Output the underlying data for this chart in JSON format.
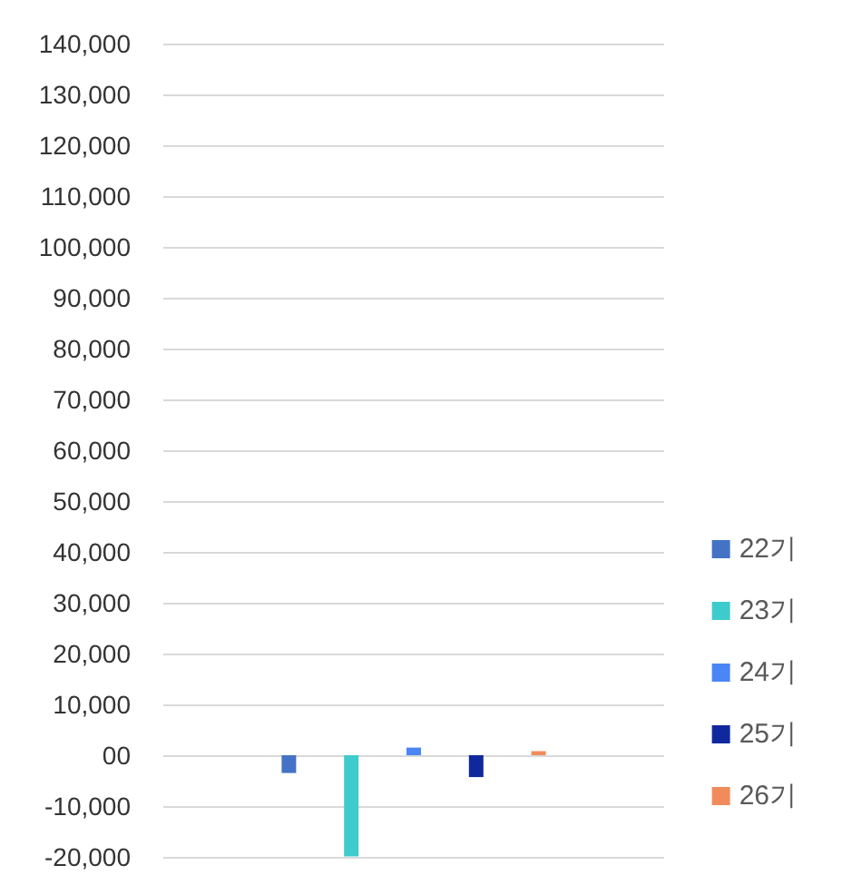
{
  "chart_data": {
    "type": "bar",
    "categories": [
      null
    ],
    "series": [
      {
        "name": "22기",
        "color": "#4472c4",
        "values": [
          -3500
        ]
      },
      {
        "name": "23기",
        "color": "#3ecbcc",
        "values": [
          -19900
        ]
      },
      {
        "name": "24기",
        "color": "#4a86f5",
        "values": [
          1500
        ]
      },
      {
        "name": "25기",
        "color": "#10289e",
        "values": [
          -4300
        ]
      },
      {
        "name": "26기",
        "color": "#f28b5c",
        "values": [
          800
        ]
      }
    ],
    "ylim": [
      -20000,
      140000
    ],
    "yticks": [
      {
        "value": -20000,
        "label": "-20,000"
      },
      {
        "value": -10000,
        "label": "-10,000"
      },
      {
        "value": 0,
        "label": "00"
      },
      {
        "value": 10000,
        "label": "10,000"
      },
      {
        "value": 20000,
        "label": "20,000"
      },
      {
        "value": 30000,
        "label": "30,000"
      },
      {
        "value": 40000,
        "label": "40,000"
      },
      {
        "value": 50000,
        "label": "50,000"
      },
      {
        "value": 60000,
        "label": "60,000"
      },
      {
        "value": 70000,
        "label": "70,000"
      },
      {
        "value": 80000,
        "label": "80,000"
      },
      {
        "value": 90000,
        "label": "90,000"
      },
      {
        "value": 100000,
        "label": "100,000"
      },
      {
        "value": 110000,
        "label": "110,000"
      },
      {
        "value": 120000,
        "label": "120,000"
      },
      {
        "value": 130000,
        "label": "130,000"
      },
      {
        "value": 140000,
        "label": "140,000"
      }
    ],
    "grid": "y",
    "legend": "bottom right"
  }
}
